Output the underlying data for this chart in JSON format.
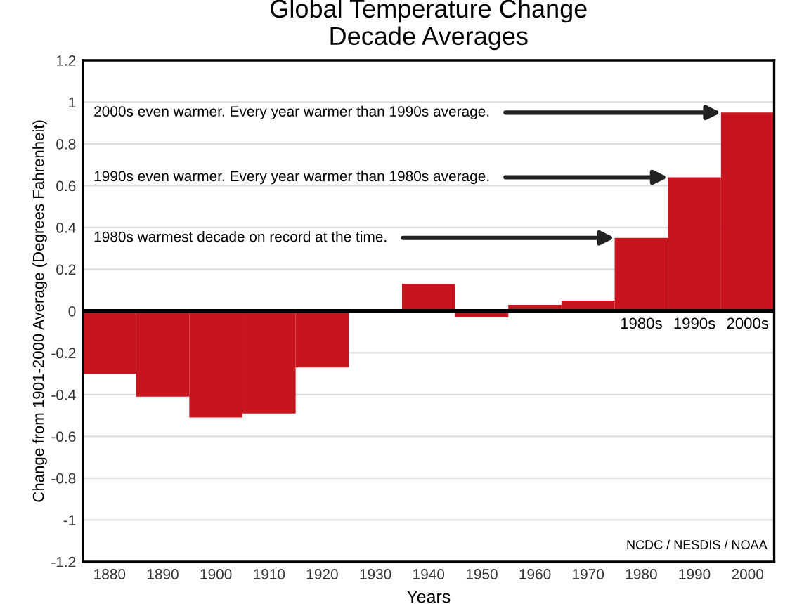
{
  "chart_data": {
    "type": "bar",
    "title": "Global Temperature Change\nDecade Averages",
    "xlabel": "Years",
    "ylabel": "Change from 1901-2000 Average (Degrees Fahrenheit)",
    "x": [
      1880,
      1890,
      1900,
      1910,
      1920,
      1930,
      1940,
      1950,
      1960,
      1970,
      1980,
      1990,
      2000
    ],
    "values": [
      -0.3,
      -0.41,
      -0.51,
      -0.49,
      -0.27,
      0,
      0.13,
      -0.03,
      0.03,
      0.05,
      0.35,
      0.64,
      0.95
    ],
    "color": "#c8141e",
    "xlim": [
      1875,
      2005
    ],
    "xticks": [
      1880,
      1890,
      1900,
      1910,
      1920,
      1930,
      1940,
      1950,
      1960,
      1970,
      1980,
      1990,
      2000
    ],
    "ylim": [
      -1.2,
      1.2
    ],
    "yticks": [
      -1.2,
      -1,
      -0.8,
      -0.6,
      -0.4,
      -0.2,
      0,
      0.2,
      0.4,
      0.6,
      0.8,
      1,
      1.2
    ],
    "grid": "y",
    "ref_lines": [
      {
        "axis": "y",
        "value": 0,
        "color": "#000000"
      }
    ],
    "annotations": [
      {
        "text": "2000s even warmer. Every year warmer than 1990s average.",
        "x": 1995,
        "y": 0.95
      },
      {
        "text": "1990s even warmer. Every year warmer than 1980s average.",
        "x": 1985,
        "y": 0.64
      },
      {
        "text": "1980s warmest decade on record at the time.",
        "x": 1975,
        "y": 0.35
      },
      {
        "text": "1980s",
        "x": 1980,
        "y": 0
      },
      {
        "text": "1990s",
        "x": 1990,
        "y": 0
      },
      {
        "text": "2000s",
        "x": 2000,
        "y": 0
      },
      "NCDC / NESDIS / NOAA"
    ]
  }
}
